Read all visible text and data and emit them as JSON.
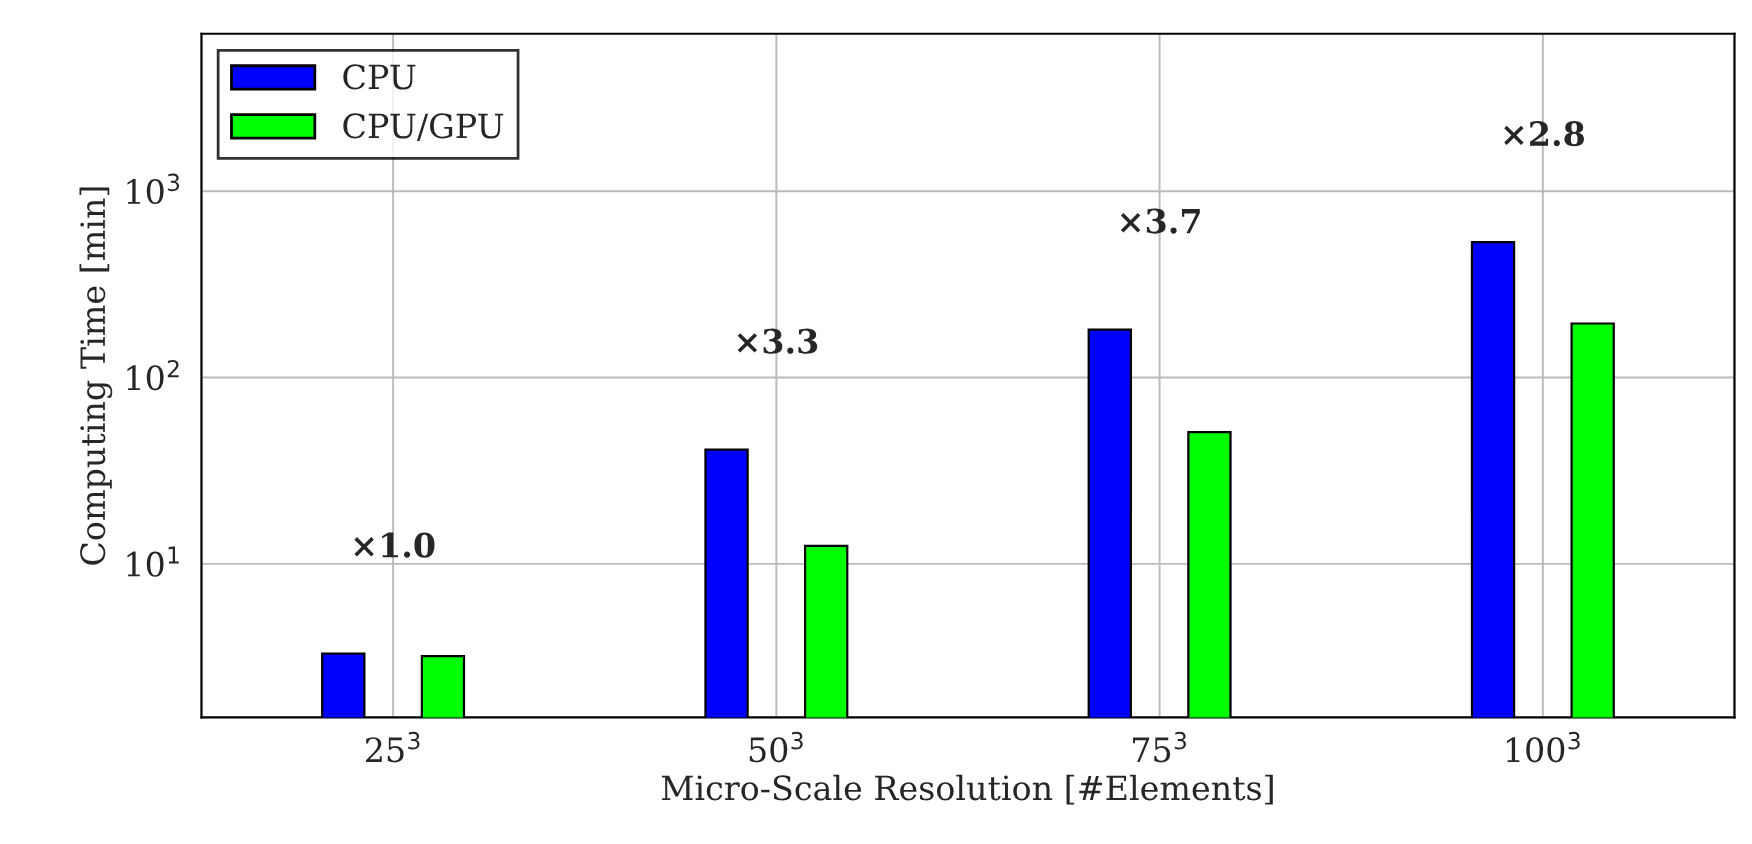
{
  "chart_data": {
    "type": "bar",
    "xlabel": "Micro-Scale Resolution [#Elements]",
    "ylabel": "Computing Time [min]",
    "categories": [
      "25$^{3}$",
      "50$^{3}$",
      "75$^{3}$",
      "100$^{3}$"
    ],
    "series": [
      {
        "name": "CPU",
        "color": "#0000ff",
        "values": [
          3.3,
          41,
          181,
          533
        ]
      },
      {
        "name": "CPU/GPU",
        "color": "#00ff00",
        "values": [
          3.2,
          12.5,
          51,
          195
        ]
      }
    ],
    "log": true,
    "ylim": [
      1.5,
      7000
    ],
    "yticks": [
      {
        "value": 10,
        "label": "10$^{1}$"
      },
      {
        "value": 100,
        "label": "10$^{2}$"
      },
      {
        "value": 1000,
        "label": "10$^{3}$"
      }
    ],
    "grid": true,
    "legend": "top left",
    "annotations": [
      "×1.0",
      "×3.3",
      "×3.7",
      "×2.8"
    ]
  }
}
